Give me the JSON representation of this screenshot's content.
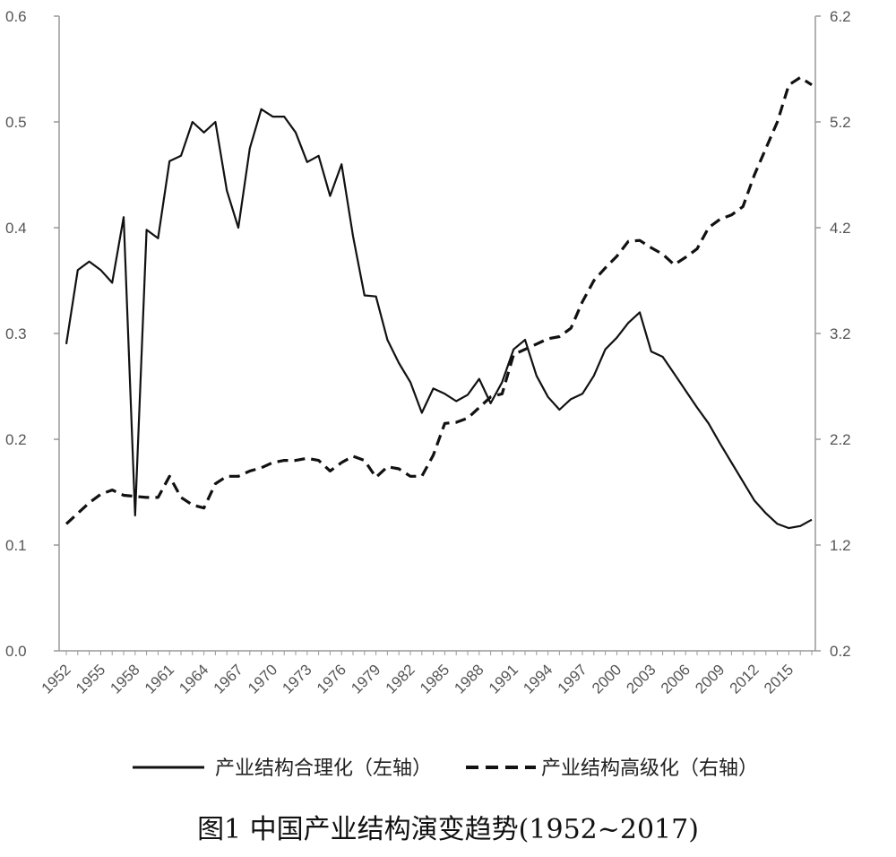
{
  "chart_data": {
    "type": "line",
    "title": "图1 中国产业结构演变趋势(1952~2017)",
    "left_axis": {
      "min": 0.0,
      "max": 0.6,
      "ticks": [
        "0.0",
        "0.1",
        "0.2",
        "0.3",
        "0.4",
        "0.5",
        "0.6"
      ]
    },
    "right_axis": {
      "min": 0.2,
      "max": 6.2,
      "ticks": [
        "0.2",
        "1.2",
        "2.2",
        "3.2",
        "4.2",
        "5.2",
        "6.2"
      ]
    },
    "x_ticks": [
      "1952",
      "1955",
      "1958",
      "1961",
      "1964",
      "1967",
      "1970",
      "1973",
      "1976",
      "1979",
      "1982",
      "1985",
      "1988",
      "1991",
      "1994",
      "1997",
      "2000",
      "2003",
      "2006",
      "2009",
      "2012",
      "2015"
    ],
    "x_range": [
      1952,
      2017
    ],
    "legend": {
      "items": [
        {
          "label": "产业结构合理化（左轴）",
          "style": "solid"
        },
        {
          "label": "产业结构高级化（右轴）",
          "style": "dashed"
        }
      ],
      "position": "bottom"
    },
    "grid": false,
    "series": [
      {
        "name": "产业结构合理化（左轴）",
        "axis": "left",
        "style": "solid",
        "x": [
          1952,
          1953,
          1954,
          1955,
          1956,
          1957,
          1958,
          1959,
          1960,
          1961,
          1962,
          1963,
          1964,
          1965,
          1966,
          1967,
          1968,
          1969,
          1970,
          1971,
          1972,
          1973,
          1974,
          1975,
          1976,
          1977,
          1978,
          1979,
          1980,
          1981,
          1982,
          1983,
          1984,
          1985,
          1986,
          1987,
          1988,
          1989,
          1990,
          1991,
          1992,
          1993,
          1994,
          1995,
          1996,
          1997,
          1998,
          1999,
          2000,
          2001,
          2002,
          2003,
          2004,
          2005,
          2006,
          2007,
          2008,
          2009,
          2010,
          2011,
          2012,
          2013,
          2014,
          2015,
          2016,
          2017
        ],
        "values": [
          0.29,
          0.36,
          0.368,
          0.36,
          0.348,
          0.41,
          0.128,
          0.398,
          0.39,
          0.463,
          0.468,
          0.5,
          0.49,
          0.5,
          0.435,
          0.4,
          0.475,
          0.512,
          0.505,
          0.505,
          0.49,
          0.462,
          0.468,
          0.43,
          0.46,
          0.392,
          0.336,
          0.335,
          0.294,
          0.272,
          0.254,
          0.225,
          0.248,
          0.243,
          0.236,
          0.242,
          0.257,
          0.234,
          0.254,
          0.285,
          0.294,
          0.26,
          0.24,
          0.228,
          0.238,
          0.243,
          0.26,
          0.285,
          0.296,
          0.31,
          0.32,
          0.283,
          0.278,
          0.262,
          0.246,
          0.23,
          0.215,
          0.196,
          0.178,
          0.16,
          0.142,
          0.13,
          0.12,
          0.116,
          0.118,
          0.124
        ]
      },
      {
        "name": "产业结构高级化（右轴）",
        "axis": "right",
        "style": "dashed",
        "x": [
          1952,
          1953,
          1954,
          1955,
          1956,
          1957,
          1958,
          1959,
          1960,
          1961,
          1962,
          1963,
          1964,
          1965,
          1966,
          1967,
          1968,
          1969,
          1970,
          1971,
          1972,
          1973,
          1974,
          1975,
          1976,
          1977,
          1978,
          1979,
          1980,
          1981,
          1982,
          1983,
          1984,
          1985,
          1986,
          1987,
          1988,
          1989,
          1990,
          1991,
          1992,
          1993,
          1994,
          1995,
          1996,
          1997,
          1998,
          1999,
          2000,
          2001,
          2002,
          2003,
          2004,
          2005,
          2006,
          2007,
          2008,
          2009,
          2010,
          2011,
          2012,
          2013,
          2014,
          2015,
          2016,
          2017
        ],
        "values": [
          1.4,
          1.5,
          1.6,
          1.68,
          1.72,
          1.67,
          1.66,
          1.65,
          1.65,
          1.85,
          1.65,
          1.58,
          1.55,
          1.78,
          1.85,
          1.85,
          1.9,
          1.93,
          1.98,
          2.0,
          2.0,
          2.02,
          2.0,
          1.9,
          1.98,
          2.04,
          2.0,
          1.84,
          1.94,
          1.92,
          1.85,
          1.85,
          2.05,
          2.35,
          2.36,
          2.4,
          2.5,
          2.6,
          2.63,
          3.0,
          3.05,
          3.1,
          3.15,
          3.17,
          3.25,
          3.5,
          3.7,
          3.82,
          3.93,
          4.07,
          4.08,
          4.01,
          3.95,
          3.85,
          3.92,
          4.0,
          4.2,
          4.28,
          4.32,
          4.4,
          4.7,
          4.95,
          5.2,
          5.55,
          5.62,
          5.55
        ]
      }
    ]
  }
}
